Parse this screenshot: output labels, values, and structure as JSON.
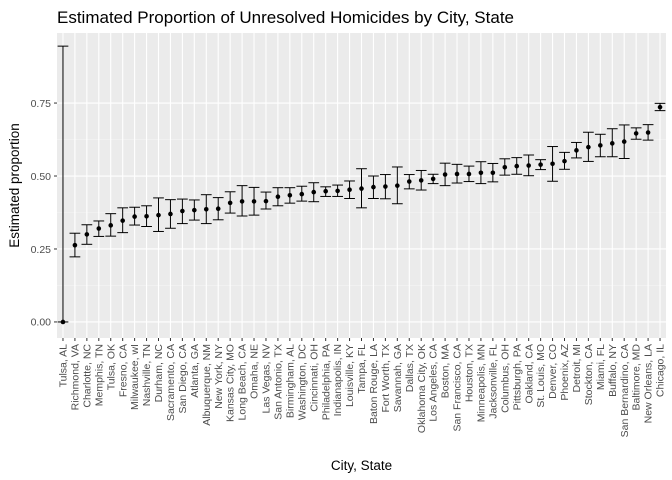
{
  "chart_data": {
    "type": "scatter",
    "title": "Estimated Proportion of Unresolved Homicides by City, State",
    "xlabel": "City, State",
    "ylabel": "Estimated proportion",
    "ylim": [
      -0.055,
      0.99
    ],
    "yticks": [
      0.0,
      0.25,
      0.5,
      0.75
    ],
    "ytick_labels": [
      "0.00",
      "0.25",
      "0.50",
      "0.75"
    ],
    "grid": true,
    "error_bars": true,
    "colors": {
      "panel": "#ebebeb",
      "grid_major": "#ffffff",
      "grid_minor": "#f5f5f5",
      "points": "#000000",
      "tick_text": "#4d4d4d"
    },
    "categories": [
      "Tulsa, AL",
      "Richmond, VA",
      "Charlotte, NC",
      "Memphis, TN",
      "Tulsa, OK",
      "Fresno, CA",
      "Milwaukee, wI",
      "Nashville, TN",
      "Durham, NC",
      "Sacramento, CA",
      "San Diego, CA",
      "Atlanta, GA",
      "Albuquerque, NM",
      "New York, NY",
      "Kansas City, MO",
      "Long Beach, CA",
      "Omaha, NE",
      "Las Vegas, NV",
      "San Antonio, TX",
      "Birmingham, AL",
      "Washington, DC",
      "Cincinnati, OH",
      "Philadelphia, PA",
      "Indianapolis, IN",
      "Louisville, KY",
      "Tampa, FL",
      "Baton Rouge, LA",
      "Fort Worth, TX",
      "Savannah, GA",
      "Dallas, TX",
      "Oklahoma City, OK",
      "Los Angeles, CA",
      "Boston, MA",
      "San Francisco, CA",
      "Houston, TX",
      "Minneapolis, MN",
      "Jacksonville, FL",
      "Columbus, OH",
      "Pittsburgh, PA",
      "Oakland, CA",
      "St. Louis, MO",
      "Denver, CO",
      "Phoenix, AZ",
      "Detroit, MI",
      "Stockton, CA",
      "Miami, FL",
      "Buffalo, NY",
      "San Bernardino, CA",
      "Baltimore, MD",
      "New Orleans, LA",
      "Chicago, IL"
    ],
    "estimate": [
      0.0,
      0.263,
      0.3,
      0.32,
      0.331,
      0.347,
      0.361,
      0.362,
      0.366,
      0.37,
      0.38,
      0.383,
      0.386,
      0.388,
      0.408,
      0.413,
      0.413,
      0.414,
      0.429,
      0.434,
      0.438,
      0.445,
      0.448,
      0.449,
      0.453,
      0.457,
      0.462,
      0.464,
      0.467,
      0.481,
      0.485,
      0.49,
      0.505,
      0.507,
      0.507,
      0.511,
      0.511,
      0.53,
      0.534,
      0.536,
      0.539,
      0.542,
      0.551,
      0.588,
      0.599,
      0.605,
      0.612,
      0.618,
      0.646,
      0.649,
      0.736
    ],
    "lower": [
      0.0,
      0.223,
      0.266,
      0.293,
      0.294,
      0.306,
      0.332,
      0.327,
      0.31,
      0.321,
      0.337,
      0.349,
      0.337,
      0.35,
      0.373,
      0.363,
      0.366,
      0.387,
      0.398,
      0.407,
      0.414,
      0.412,
      0.43,
      0.43,
      0.423,
      0.391,
      0.423,
      0.422,
      0.405,
      0.456,
      0.452,
      0.474,
      0.467,
      0.476,
      0.481,
      0.474,
      0.48,
      0.503,
      0.506,
      0.501,
      0.522,
      0.482,
      0.523,
      0.562,
      0.55,
      0.566,
      0.566,
      0.56,
      0.626,
      0.623,
      0.724
    ],
    "upper": [
      0.945,
      0.304,
      0.333,
      0.346,
      0.371,
      0.391,
      0.393,
      0.398,
      0.425,
      0.419,
      0.421,
      0.418,
      0.436,
      0.426,
      0.446,
      0.467,
      0.461,
      0.445,
      0.46,
      0.46,
      0.465,
      0.477,
      0.463,
      0.469,
      0.483,
      0.525,
      0.5,
      0.505,
      0.531,
      0.505,
      0.519,
      0.506,
      0.544,
      0.54,
      0.534,
      0.549,
      0.543,
      0.559,
      0.563,
      0.572,
      0.556,
      0.601,
      0.581,
      0.615,
      0.65,
      0.643,
      0.662,
      0.675,
      0.665,
      0.676,
      0.749
    ]
  }
}
